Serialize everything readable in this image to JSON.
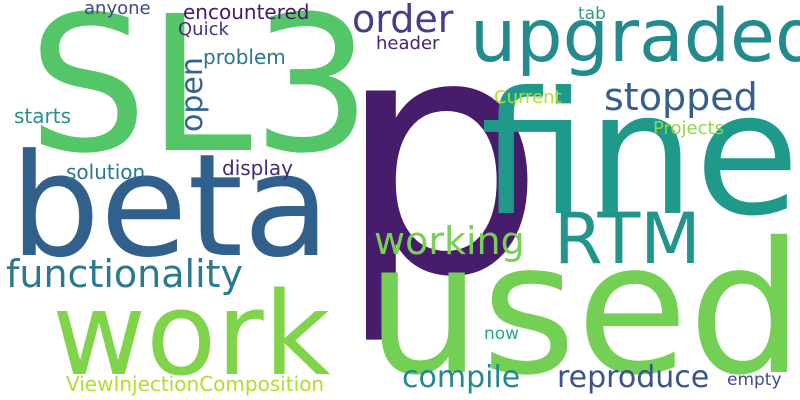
{
  "cloud": {
    "words": [
      {
        "text": "p",
        "color": "#471c6a"
      },
      {
        "text": "SL3",
        "color": "#55c667"
      },
      {
        "text": "used",
        "color": "#74d055"
      },
      {
        "text": "fine",
        "color": "#1f9a8a"
      },
      {
        "text": "beta",
        "color": "#32608d"
      },
      {
        "text": "work",
        "color": "#80d44a"
      },
      {
        "text": "upgraded",
        "color": "#238a8d"
      },
      {
        "text": "RTM",
        "color": "#22958b"
      },
      {
        "text": "functionality",
        "color": "#2a798e"
      },
      {
        "text": "working",
        "color": "#77d153"
      },
      {
        "text": "stopped",
        "color": "#345f8d"
      },
      {
        "text": "order",
        "color": "#443f84"
      },
      {
        "text": "compile",
        "color": "#23898e"
      },
      {
        "text": "reproduce",
        "color": "#3b528b"
      },
      {
        "text": "open",
        "color": "#33638d"
      },
      {
        "text": "ViewInjectionComposition",
        "color": "#b0dd2f"
      },
      {
        "text": "solution",
        "color": "#2a788e"
      },
      {
        "text": "display",
        "color": "#482878"
      },
      {
        "text": "encountered",
        "color": "#481769"
      },
      {
        "text": "problem",
        "color": "#2b758e"
      },
      {
        "text": "Current",
        "color": "#b5de2b"
      },
      {
        "text": "Projects",
        "color": "#90d743"
      },
      {
        "text": "starts",
        "color": "#21918c"
      },
      {
        "text": "anyone",
        "color": "#3e4a89"
      },
      {
        "text": "Quick",
        "color": "#46307e"
      },
      {
        "text": "header",
        "color": "#482173"
      },
      {
        "text": "tab",
        "color": "#2c9c87"
      },
      {
        "text": "now",
        "color": "#25a884"
      },
      {
        "text": "empty",
        "color": "#3e4c8a"
      }
    ]
  }
}
